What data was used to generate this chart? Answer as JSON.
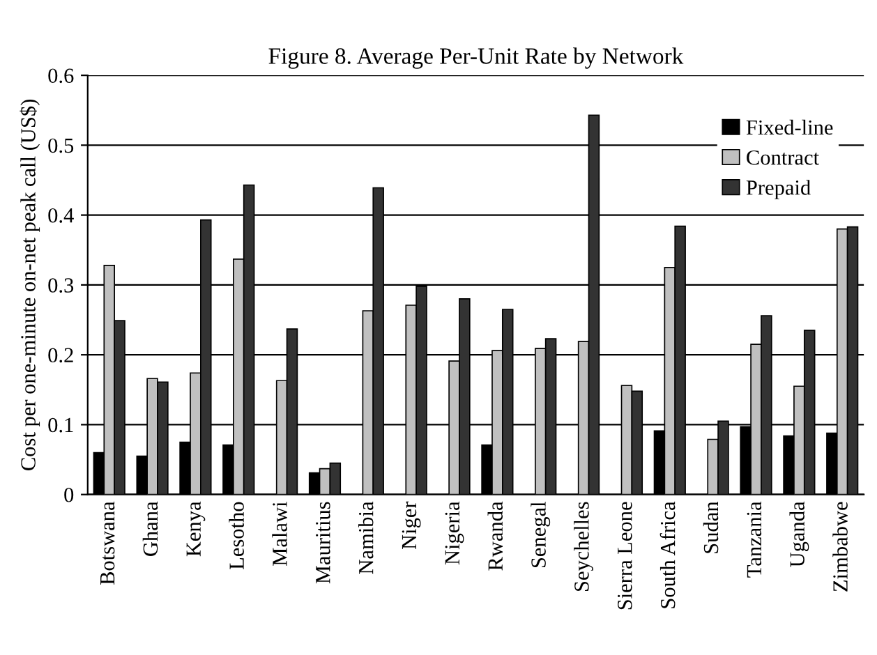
{
  "chart_data": {
    "type": "bar",
    "title": "Figure 8. Average Per-Unit Rate by Network",
    "ylabel": "Cost per one-minute on-net peak call (US$)",
    "categories": [
      "Botswana",
      "Ghana",
      "Kenya",
      "Lesotho",
      "Malawi",
      "Mauritius",
      "Namibia",
      "Niger",
      "Nigeria",
      "Rwanda",
      "Senegal",
      "Seychelles",
      "Sierra Leone",
      "South Africa",
      "Sudan",
      "Tanzania",
      "Uganda",
      "Zimbabwe"
    ],
    "series": [
      {
        "name": "Fixed-line",
        "color": "#000000",
        "values": [
          0.06,
          0.055,
          0.075,
          0.071,
          null,
          0.031,
          null,
          null,
          null,
          0.071,
          null,
          null,
          null,
          0.091,
          null,
          0.097,
          0.084,
          0.088
        ]
      },
      {
        "name": "Contract",
        "color": "#c0c0c0",
        "values": [
          0.328,
          0.166,
          0.174,
          0.337,
          0.163,
          0.037,
          0.263,
          0.271,
          0.191,
          0.206,
          0.209,
          0.219,
          0.156,
          0.325,
          0.079,
          0.215,
          0.155,
          0.38
        ]
      },
      {
        "name": "Prepaid",
        "color": "#333333",
        "values": [
          0.249,
          0.161,
          0.393,
          0.443,
          0.237,
          0.045,
          0.439,
          0.298,
          0.28,
          0.265,
          0.223,
          0.543,
          0.148,
          0.384,
          0.105,
          0.256,
          0.235,
          0.383
        ]
      }
    ],
    "ylim": [
      0,
      0.6
    ],
    "yticks": [
      0,
      0.1,
      0.2,
      0.3,
      0.4,
      0.5,
      0.6
    ],
    "grid": "y",
    "legend": "top right"
  }
}
